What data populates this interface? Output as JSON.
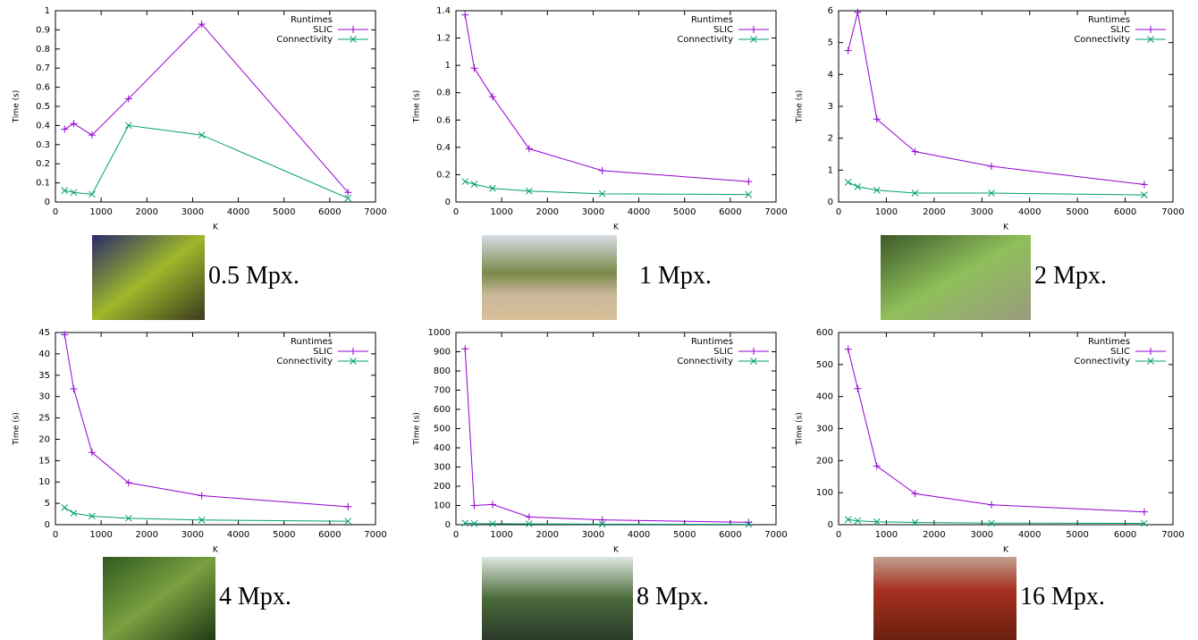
{
  "chart_data": [
    {
      "type": "line",
      "legend_title": "Runtimes",
      "xlabel": "K",
      "ylabel": "Time (s)",
      "caption": "0.5 Mpx.",
      "x": [
        200,
        400,
        800,
        1600,
        3200,
        6400
      ],
      "xlim": [
        0,
        7000
      ],
      "xticks": [
        0,
        1000,
        2000,
        3000,
        4000,
        5000,
        6000,
        7000
      ],
      "ylim": [
        0,
        1
      ],
      "yticks": [
        0,
        0.1,
        0.2,
        0.3,
        0.4,
        0.5,
        0.6,
        0.7,
        0.8,
        0.9,
        1
      ],
      "series": [
        {
          "name": "SLIC",
          "color": "#9400d3",
          "values": [
            0.38,
            0.41,
            0.35,
            0.54,
            0.93,
            0.05
          ]
        },
        {
          "name": "Connectivity",
          "color": "#009e73",
          "values": [
            0.06,
            0.05,
            0.04,
            0.4,
            0.35,
            0.02
          ]
        }
      ]
    },
    {
      "type": "line",
      "legend_title": "Runtimes",
      "xlabel": "K",
      "ylabel": "Time (s)",
      "caption": "1 Mpx.",
      "x": [
        200,
        400,
        800,
        1600,
        3200,
        6400
      ],
      "xlim": [
        0,
        7000
      ],
      "xticks": [
        0,
        1000,
        2000,
        3000,
        4000,
        5000,
        6000,
        7000
      ],
      "ylim": [
        0,
        1.4
      ],
      "yticks": [
        0,
        0.2,
        0.4,
        0.6,
        0.8,
        1,
        1.2,
        1.4
      ],
      "series": [
        {
          "name": "SLIC",
          "color": "#9400d3",
          "values": [
            1.37,
            0.98,
            0.77,
            0.39,
            0.23,
            0.15
          ]
        },
        {
          "name": "Connectivity",
          "color": "#009e73",
          "values": [
            0.15,
            0.13,
            0.1,
            0.08,
            0.06,
            0.055
          ]
        }
      ]
    },
    {
      "type": "line",
      "legend_title": "Runtimes",
      "xlabel": "K",
      "ylabel": "Time (s)",
      "caption": "2 Mpx.",
      "x": [
        200,
        400,
        800,
        1600,
        3200,
        6400
      ],
      "xlim": [
        0,
        7000
      ],
      "xticks": [
        0,
        1000,
        2000,
        3000,
        4000,
        5000,
        6000,
        7000
      ],
      "ylim": [
        0,
        6
      ],
      "yticks": [
        0,
        1,
        2,
        3,
        4,
        5,
        6
      ],
      "series": [
        {
          "name": "SLIC",
          "color": "#9400d3",
          "values": [
            4.75,
            5.95,
            2.6,
            1.58,
            1.12,
            0.55
          ]
        },
        {
          "name": "Connectivity",
          "color": "#009e73",
          "values": [
            0.62,
            0.48,
            0.37,
            0.28,
            0.28,
            0.22
          ]
        }
      ]
    },
    {
      "type": "line",
      "legend_title": "Runtimes",
      "xlabel": "K",
      "ylabel": "Time (s)",
      "caption": "4 Mpx.",
      "x": [
        200,
        400,
        800,
        1600,
        3200,
        6400
      ],
      "xlim": [
        0,
        7000
      ],
      "xticks": [
        0,
        1000,
        2000,
        3000,
        4000,
        5000,
        6000,
        7000
      ],
      "ylim": [
        0,
        45
      ],
      "yticks": [
        0,
        5,
        10,
        15,
        20,
        25,
        30,
        35,
        40,
        45
      ],
      "series": [
        {
          "name": "SLIC",
          "color": "#9400d3",
          "values": [
            44.5,
            31.8,
            16.9,
            9.8,
            6.8,
            4.2
          ]
        },
        {
          "name": "Connectivity",
          "color": "#009e73",
          "values": [
            4.0,
            2.7,
            2.0,
            1.5,
            1.1,
            0.8
          ]
        }
      ]
    },
    {
      "type": "line",
      "legend_title": "Runtimes",
      "xlabel": "K",
      "ylabel": "Time (s)",
      "caption": "8 Mpx.",
      "x": [
        200,
        400,
        800,
        1600,
        3200,
        6400
      ],
      "xlim": [
        0,
        7000
      ],
      "xticks": [
        0,
        1000,
        2000,
        3000,
        4000,
        5000,
        6000,
        7000
      ],
      "ylim": [
        0,
        1000
      ],
      "yticks": [
        0,
        100,
        200,
        300,
        400,
        500,
        600,
        700,
        800,
        900,
        1000
      ],
      "series": [
        {
          "name": "SLIC",
          "color": "#9400d3",
          "values": [
            915,
            100,
            105,
            40,
            25,
            12
          ]
        },
        {
          "name": "Connectivity",
          "color": "#009e73",
          "values": [
            8,
            6,
            5,
            4,
            3,
            2
          ]
        }
      ]
    },
    {
      "type": "line",
      "legend_title": "Runtimes",
      "xlabel": "K",
      "ylabel": "Time (s)",
      "caption": "16 Mpx.",
      "x": [
        200,
        400,
        800,
        1600,
        3200,
        6400
      ],
      "xlim": [
        0,
        7000
      ],
      "xticks": [
        0,
        1000,
        2000,
        3000,
        4000,
        5000,
        6000,
        7000
      ],
      "ylim": [
        0,
        600
      ],
      "yticks": [
        0,
        100,
        200,
        300,
        400,
        500,
        600
      ],
      "series": [
        {
          "name": "SLIC",
          "color": "#9400d3",
          "values": [
            548,
            425,
            183,
            97,
            62,
            40
          ]
        },
        {
          "name": "Connectivity",
          "color": "#009e73",
          "values": [
            16,
            12,
            9,
            7,
            5,
            4
          ]
        }
      ]
    }
  ]
}
